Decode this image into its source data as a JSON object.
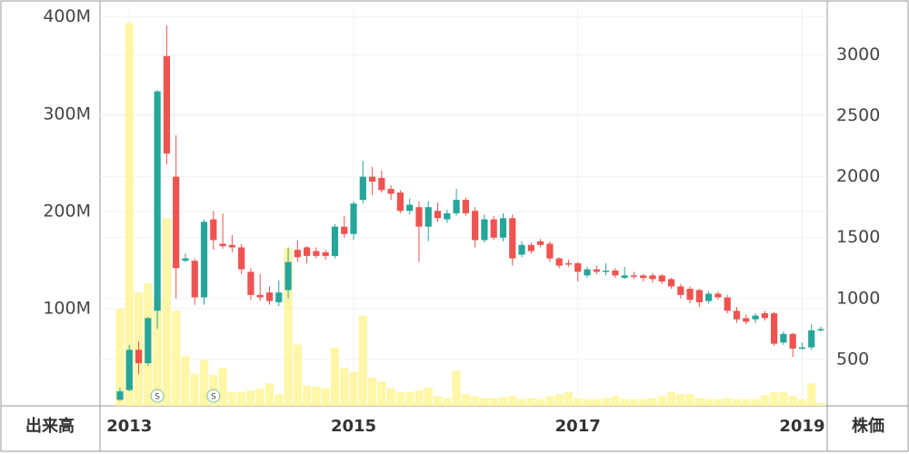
{
  "chart_data": {
    "type": "candlestick",
    "y_label": "出来高",
    "y2_label": "株価",
    "categories": [
      null,
      "2013",
      null,
      null,
      null,
      null,
      null,
      null,
      null,
      null,
      null,
      null,
      null,
      null,
      null,
      null,
      null,
      null,
      null,
      null,
      null,
      null,
      null,
      null,
      null,
      "2015",
      null,
      null,
      null,
      null,
      null,
      null,
      null,
      null,
      null,
      null,
      null,
      null,
      null,
      null,
      null,
      null,
      null,
      null,
      null,
      null,
      null,
      null,
      null,
      "2017",
      null,
      null,
      null,
      null,
      null,
      null,
      null,
      null,
      null,
      null,
      null,
      null,
      null,
      null,
      null,
      null,
      null,
      null,
      null,
      null,
      null,
      null,
      null,
      "2019",
      null,
      null
    ],
    "open": [
      170,
      250,
      580,
      470,
      900,
      2990,
      2000,
      1310,
      1310,
      1010,
      1650,
      1450,
      1440,
      1420,
      1220,
      1030,
      1050,
      970,
      1070,
      1400,
      1420,
      1390,
      1380,
      1350,
      1590,
      1530,
      1810,
      2000,
      1990,
      1900,
      1870,
      1720,
      1750,
      1590,
      1720,
      1650,
      1700,
      1810,
      1720,
      1480,
      1650,
      1500,
      1660,
      1360,
      1440,
      1470,
      1450,
      1330,
      1290,
      1290,
      1190,
      1240,
      1220,
      1230,
      1170,
      1190,
      1190,
      1190,
      1190,
      1160,
      1100,
      1080,
      1070,
      980,
      1040,
      1010,
      900,
      840,
      830,
      880,
      880,
      640,
      710,
      590,
      600,
      740
    ],
    "high": [
      270,
      620,
      650,
      850,
      2710,
      3240,
      2340,
      1370,
      1330,
      1650,
      1720,
      1700,
      1520,
      1450,
      1250,
      1200,
      1100,
      1150,
      1420,
      1480,
      1430,
      1420,
      1400,
      1610,
      1680,
      1800,
      2130,
      2080,
      2050,
      1930,
      1890,
      1820,
      1800,
      1800,
      1790,
      1730,
      1900,
      1830,
      1750,
      1690,
      1680,
      1700,
      1690,
      1470,
      1460,
      1490,
      1470,
      1340,
      1320,
      1300,
      1260,
      1270,
      1290,
      1250,
      1260,
      1220,
      1200,
      1210,
      1200,
      1170,
      1120,
      1100,
      1080,
      1060,
      1060,
      1030,
      930,
      870,
      880,
      900,
      890,
      730,
      720,
      640,
      790,
      770
    ],
    "low": [
      160,
      240,
      380,
      450,
      750,
      2100,
      1000,
      1300,
      950,
      950,
      1400,
      1410,
      1380,
      1200,
      990,
      980,
      950,
      940,
      1000,
      1300,
      1290,
      1330,
      1320,
      1330,
      1500,
      1480,
      1780,
      1850,
      1870,
      1810,
      1700,
      1690,
      1300,
      1470,
      1630,
      1620,
      1680,
      1680,
      1420,
      1460,
      1480,
      1470,
      1270,
      1340,
      1370,
      1420,
      1300,
      1250,
      1260,
      1140,
      1170,
      1200,
      1190,
      1170,
      1160,
      1160,
      1140,
      1130,
      1120,
      1080,
      1000,
      960,
      930,
      960,
      990,
      880,
      800,
      790,
      800,
      820,
      610,
      620,
      520,
      580,
      580,
      730
    ],
    "close": [
      240,
      580,
      470,
      840,
      2700,
      2190,
      1250,
      1330,
      1010,
      1630,
      1480,
      1430,
      1420,
      1240,
      1030,
      1010,
      980,
      1050,
      1300,
      1340,
      1350,
      1350,
      1350,
      1590,
      1530,
      1780,
      2000,
      1960,
      1890,
      1860,
      1720,
      1770,
      1590,
      1750,
      1660,
      1700,
      1810,
      1700,
      1480,
      1650,
      1500,
      1660,
      1330,
      1440,
      1390,
      1440,
      1330,
      1270,
      1280,
      1220,
      1240,
      1220,
      1230,
      1190,
      1190,
      1180,
      1170,
      1160,
      1140,
      1100,
      1030,
      990,
      970,
      1040,
      1010,
      900,
      830,
      810,
      860,
      840,
      630,
      710,
      590,
      600,
      740,
      750
    ],
    "volume": [
      100000000,
      394000000,
      117000000,
      126000000,
      110000000,
      193000000,
      98000000,
      51000000,
      33000000,
      47000000,
      32000000,
      39000000,
      14000000,
      14000000,
      16000000,
      18000000,
      23000000,
      12000000,
      162000000,
      63000000,
      21000000,
      20000000,
      18000000,
      60000000,
      39000000,
      35000000,
      93000000,
      29000000,
      25000000,
      18000000,
      14000000,
      14000000,
      16000000,
      19000000,
      10000000,
      8000000,
      36000000,
      12000000,
      10000000,
      8000000,
      8000000,
      9000000,
      10000000,
      7000000,
      8000000,
      7000000,
      10000000,
      12000000,
      14000000,
      8000000,
      7000000,
      7000000,
      8000000,
      10000000,
      7000000,
      7000000,
      7000000,
      8000000,
      10000000,
      14000000,
      12000000,
      12000000,
      8000000,
      7000000,
      7000000,
      8000000,
      7000000,
      7000000,
      7000000,
      11000000,
      14000000,
      14000000,
      10000000,
      7000000,
      23000000,
      3000000
    ],
    "events": [
      {
        "index": 4,
        "label": "S"
      },
      {
        "index": 10,
        "label": "S"
      }
    ],
    "up_color": "#26a69a",
    "down_color": "#ef5350",
    "volume_color": "#fff59d",
    "ylim": [
      0,
      410000000
    ],
    "yticks": [
      {
        "value": 100000000,
        "label": "100M"
      },
      {
        "value": 200000000,
        "label": "200M"
      },
      {
        "value": 300000000,
        "label": "300M"
      },
      {
        "value": 400000000,
        "label": "400M"
      }
    ],
    "y2lim": [
      120,
      3390
    ],
    "y2ticks": [
      500,
      1000,
      1500,
      2000,
      2500,
      3000
    ],
    "grid": true
  }
}
